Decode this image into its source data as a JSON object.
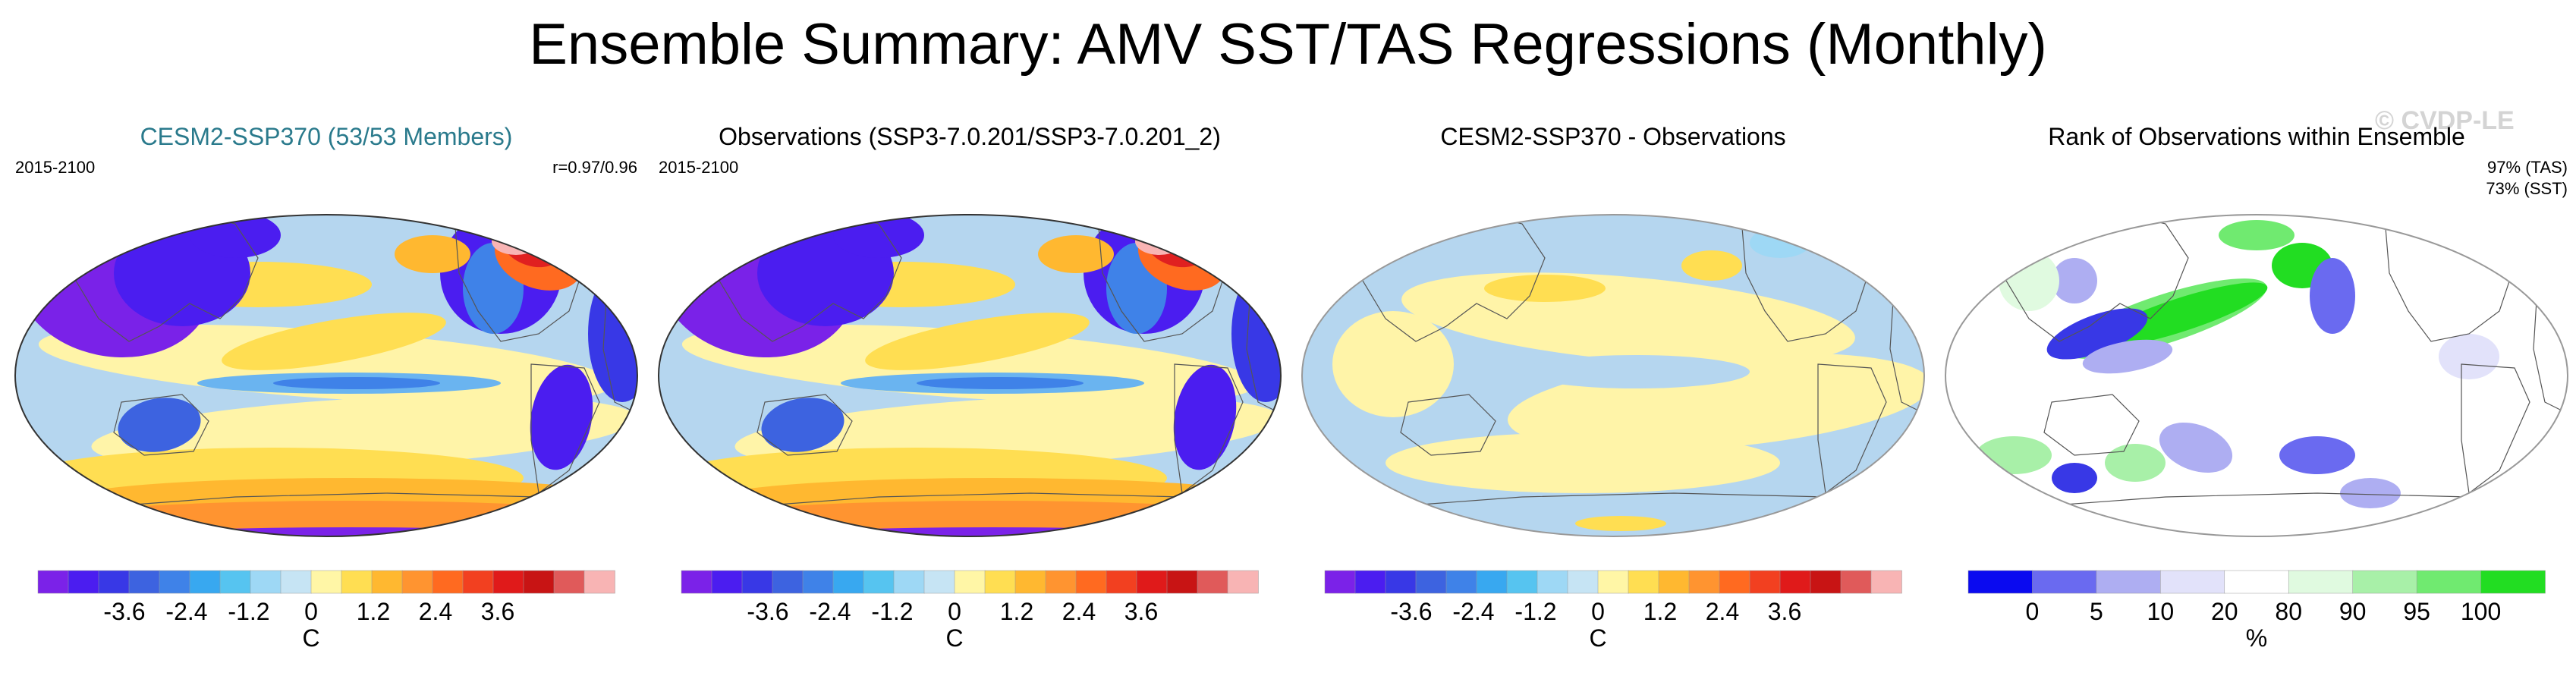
{
  "title": "Ensemble Summary: AMV SST/TAS Regressions (Monthly)",
  "watermark": "© CVDP-LE",
  "colors": {
    "ocean_light_blue": "#b5d6ef",
    "pale_yellow": "#fff4a8",
    "purple": "#7a22e8",
    "red": "#e02020",
    "green": "#22dd22"
  },
  "panels": [
    {
      "title": "CESM2-SSP370 (53/53 Members)",
      "period": "2015-2100",
      "stat": "r=0.97/0.96",
      "stat2": "",
      "colorbar": {
        "unit": "C",
        "ticks": [
          "-3.6",
          "-2.4",
          "-1.2",
          "0",
          "1.2",
          "2.4",
          "3.6"
        ],
        "colors": [
          "#7b22e8",
          "#4b1df0",
          "#3838e6",
          "#3d63e0",
          "#3f82e8",
          "#38a8f0",
          "#56c4f0",
          "#9ed8f5",
          "#c6e4f4",
          "#fff6a6",
          "#ffde52",
          "#ffb830",
          "#ff9430",
          "#ff6a20",
          "#f24020",
          "#e01a1a",
          "#c81414",
          "#e05a5a",
          "#f8b4b4"
        ]
      }
    },
    {
      "title": "Observations (SSP3-7.0.201/SSP3-7.0.201_2)",
      "period": "2015-2100",
      "stat": "",
      "stat2": "",
      "colorbar": {
        "unit": "C",
        "ticks": [
          "-3.6",
          "-2.4",
          "-1.2",
          "0",
          "1.2",
          "2.4",
          "3.6"
        ],
        "colors": [
          "#7b22e8",
          "#4b1df0",
          "#3838e6",
          "#3d63e0",
          "#3f82e8",
          "#38a8f0",
          "#56c4f0",
          "#9ed8f5",
          "#c6e4f4",
          "#fff6a6",
          "#ffde52",
          "#ffb830",
          "#ff9430",
          "#ff6a20",
          "#f24020",
          "#e01a1a",
          "#c81414",
          "#e05a5a",
          "#f8b4b4"
        ]
      }
    },
    {
      "title": "CESM2-SSP370 - Observations",
      "period": "",
      "stat": "",
      "stat2": "",
      "colorbar": {
        "unit": "C",
        "ticks": [
          "-3.6",
          "-2.4",
          "-1.2",
          "0",
          "1.2",
          "2.4",
          "3.6"
        ],
        "colors": [
          "#7b22e8",
          "#4b1df0",
          "#3838e6",
          "#3d63e0",
          "#3f82e8",
          "#38a8f0",
          "#56c4f0",
          "#9ed8f5",
          "#c6e4f4",
          "#fff6a6",
          "#ffde52",
          "#ffb830",
          "#ff9430",
          "#ff6a20",
          "#f24020",
          "#e01a1a",
          "#c81414",
          "#e05a5a",
          "#f8b4b4"
        ]
      }
    },
    {
      "title": "Rank of Observations within Ensemble",
      "period": "",
      "stat": "97% (TAS)",
      "stat2": "73% (SST)",
      "colorbar": {
        "unit": "%",
        "ticks": [
          "0",
          "5",
          "10",
          "20",
          "80",
          "90",
          "95",
          "100"
        ],
        "colors": [
          "#0a0af0",
          "#6a6af0",
          "#aeaef2",
          "#e2e2fa",
          "#ffffff",
          "#e0fae0",
          "#a8f0a8",
          "#70ea70",
          "#22dd22"
        ]
      }
    }
  ]
}
